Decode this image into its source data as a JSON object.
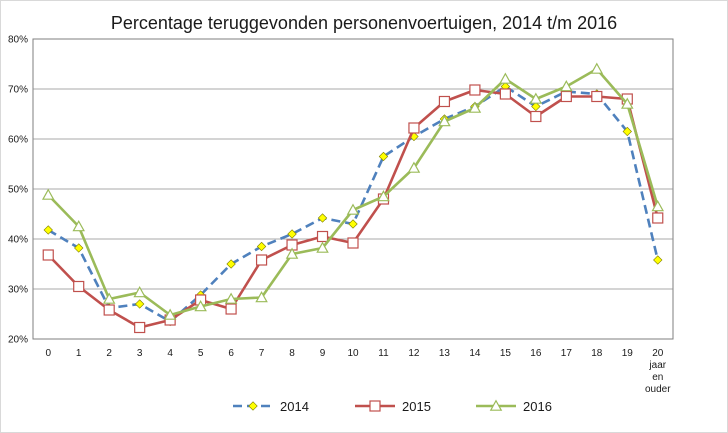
{
  "chart_data": {
    "type": "line",
    "title": "Percentage teruggevonden personenvoertuigen, 2014 t/m 2016",
    "xlabel": "",
    "ylabel": "",
    "categories": [
      "0",
      "1",
      "2",
      "3",
      "4",
      "5",
      "6",
      "7",
      "8",
      "9",
      "10",
      "11",
      "12",
      "13",
      "14",
      "15",
      "16",
      "17",
      "18",
      "19",
      "20 jaar en ouder"
    ],
    "category_lines": [
      [
        "0"
      ],
      [
        "1"
      ],
      [
        "2"
      ],
      [
        "3"
      ],
      [
        "4"
      ],
      [
        "5"
      ],
      [
        "6"
      ],
      [
        "7"
      ],
      [
        "8"
      ],
      [
        "9"
      ],
      [
        "10"
      ],
      [
        "11"
      ],
      [
        "12"
      ],
      [
        "13"
      ],
      [
        "14"
      ],
      [
        "15"
      ],
      [
        "16"
      ],
      [
        "17"
      ],
      [
        "18"
      ],
      [
        "19"
      ],
      [
        "20",
        "jaar",
        "en",
        "ouder"
      ]
    ],
    "yticks": [
      "20%",
      "30%",
      "40%",
      "50%",
      "60%",
      "70%",
      "80%"
    ],
    "ylim": [
      20,
      80
    ],
    "grid": true,
    "legend_position": "bottom",
    "series": [
      {
        "name": "2014",
        "color": "#4f81bd",
        "marker_color": "#ffff00",
        "marker": "diamond",
        "line_style": "dashed",
        "values": [
          41.8,
          38.2,
          26.2,
          27.0,
          23.5,
          28.8,
          35.0,
          38.5,
          41.0,
          44.2,
          43.0,
          56.5,
          60.5,
          64.0,
          66.5,
          70.5,
          66.5,
          69.5,
          69.0,
          61.5,
          35.8
        ]
      },
      {
        "name": "2015",
        "color": "#c0504d",
        "marker_color": "#ffffff",
        "marker": "square",
        "line_style": "solid",
        "values": [
          36.8,
          30.5,
          25.8,
          22.3,
          23.8,
          27.8,
          26.0,
          35.8,
          38.8,
          40.5,
          39.2,
          48.0,
          62.2,
          67.5,
          69.8,
          69.0,
          64.5,
          68.5,
          68.5,
          68.0,
          44.2
        ]
      },
      {
        "name": "2016",
        "color": "#9bbb59",
        "marker_color": "#ffffff",
        "marker": "triangle",
        "line_style": "solid",
        "values": [
          48.8,
          42.5,
          28.0,
          29.3,
          24.8,
          26.5,
          28.0,
          28.3,
          37.0,
          38.2,
          45.8,
          48.5,
          54.2,
          63.5,
          66.2,
          72.0,
          68.0,
          70.5,
          74.0,
          67.0,
          46.5
        ]
      }
    ]
  }
}
